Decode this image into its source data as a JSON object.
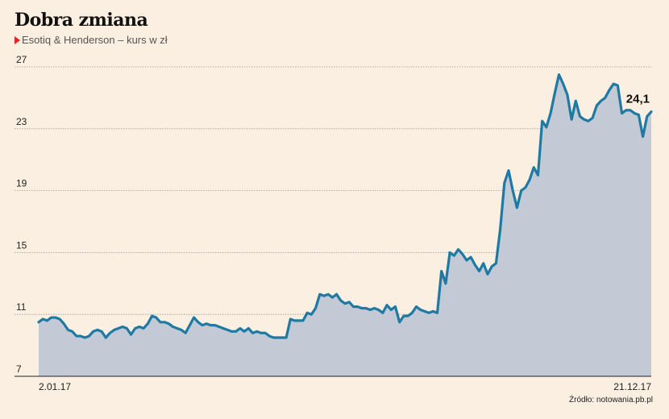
{
  "header": {
    "title": "Dobra zmiana",
    "subtitle": "Esotiq & Henderson – kurs w zł"
  },
  "footer": {
    "source": "Źródło: notowania.pb.pl"
  },
  "colors": {
    "line": "#1f7aa3",
    "area": "#c3cad6",
    "grid": "#9a9a9a",
    "background": "#fbefe1",
    "marker": "#e52420"
  },
  "chart_data": {
    "type": "area",
    "title": "Dobra zmiana",
    "subtitle": "Esotiq & Henderson – kurs w zł",
    "xlabel": "",
    "ylabel": "",
    "ylim": [
      7,
      27
    ],
    "yticks": [
      7,
      11,
      15,
      19,
      23,
      27
    ],
    "grid": true,
    "x_start_label": "2.01.17",
    "x_end_label": "21.12.17",
    "last_value_label": "24,1",
    "series": [
      {
        "name": "",
        "values": [
          10.5,
          10.7,
          10.6,
          10.8,
          10.8,
          10.7,
          10.4,
          10.0,
          9.9,
          9.6,
          9.6,
          9.5,
          9.6,
          9.9,
          10.0,
          9.9,
          9.5,
          9.8,
          10.0,
          10.1,
          10.2,
          10.1,
          9.7,
          10.1,
          10.2,
          10.1,
          10.4,
          10.9,
          10.8,
          10.5,
          10.5,
          10.4,
          10.2,
          10.1,
          10.0,
          9.8,
          10.3,
          10.8,
          10.5,
          10.3,
          10.4,
          10.3,
          10.3,
          10.2,
          10.1,
          10.0,
          9.9,
          9.9,
          10.1,
          9.9,
          10.1,
          9.8,
          9.9,
          9.8,
          9.8,
          9.6,
          9.5,
          9.5,
          9.5,
          9.5,
          10.7,
          10.6,
          10.6,
          10.6,
          11.1,
          11.0,
          11.4,
          12.3,
          12.2,
          12.3,
          12.1,
          12.3,
          11.9,
          11.7,
          11.8,
          11.5,
          11.5,
          11.4,
          11.4,
          11.3,
          11.4,
          11.3,
          11.1,
          11.6,
          11.3,
          11.5,
          10.5,
          10.9,
          10.9,
          11.1,
          11.5,
          11.3,
          11.2,
          11.1,
          11.2,
          11.1,
          13.8,
          13.0,
          15.0,
          14.8,
          15.2,
          14.9,
          14.5,
          14.7,
          14.2,
          13.8,
          14.3,
          13.6,
          14.1,
          14.3,
          16.5,
          19.5,
          20.3,
          19.0,
          17.9,
          19.0,
          19.2,
          19.7,
          20.5,
          20.0,
          23.5,
          23.1,
          24.0,
          25.3,
          26.5,
          25.9,
          25.2,
          23.6,
          24.8,
          23.8,
          23.6,
          23.5,
          23.7,
          24.5,
          24.8,
          25.0,
          25.5,
          25.9,
          25.8,
          24.0,
          24.2,
          24.2,
          24.0,
          23.9,
          22.5,
          23.8,
          24.1
        ]
      }
    ]
  }
}
